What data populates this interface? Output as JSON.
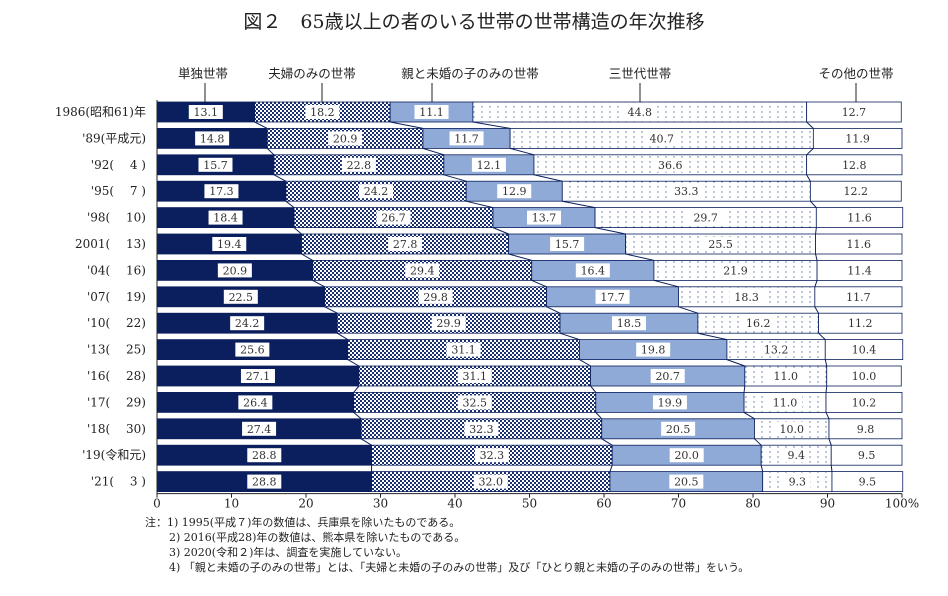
{
  "chart_data": {
    "type": "bar",
    "orientation": "horizontal",
    "stacked": true,
    "title": "図２　65歳以上の者のいる世帯の世帯構造の年次推移",
    "categories": [
      "1986(昭和61)年",
      "'89(平成元)",
      "'92(　 4 )",
      "'95(　 7 )",
      "'98(　 10)",
      "2001(　 13)",
      "'04(　 16)",
      "'07(　 19)",
      "'10(　 22)",
      "'13(　 25)",
      "'16(　 28)",
      "'17(　 29)",
      "'18(　 30)",
      "'19(令和元)",
      "'21(　 3 )"
    ],
    "series": [
      {
        "name": "単独世帯",
        "color": "#0b1f5e",
        "values": [
          13.1,
          14.8,
          15.7,
          17.3,
          18.4,
          19.4,
          20.9,
          22.5,
          24.2,
          25.6,
          27.1,
          26.4,
          27.4,
          28.8,
          28.8
        ]
      },
      {
        "name": "夫婦のみの世帯",
        "color": "#1a2f6e",
        "pattern": "checker",
        "values": [
          18.2,
          20.9,
          22.8,
          24.2,
          26.7,
          27.8,
          29.4,
          29.8,
          29.9,
          31.1,
          31.1,
          32.5,
          32.3,
          32.3,
          32.0
        ]
      },
      {
        "name": "親と未婚の子のみの世帯",
        "color": "#8faad6",
        "values": [
          11.1,
          11.7,
          12.1,
          12.9,
          13.7,
          15.7,
          16.4,
          17.7,
          18.5,
          19.8,
          20.7,
          19.9,
          20.5,
          20.0,
          20.5
        ]
      },
      {
        "name": "三世代世帯",
        "color": "#ffffff",
        "pattern": "dots",
        "values": [
          44.8,
          40.7,
          36.6,
          33.3,
          29.7,
          25.5,
          21.9,
          18.3,
          16.2,
          13.2,
          11.0,
          11.0,
          10.0,
          9.4,
          9.3
        ]
      },
      {
        "name": "その他の世帯",
        "color": "#ffffff",
        "values": [
          12.7,
          11.9,
          12.8,
          12.2,
          11.6,
          11.6,
          11.4,
          11.7,
          11.2,
          10.4,
          10.0,
          10.2,
          9.8,
          9.5,
          9.5
        ]
      }
    ],
    "xlim": [
      0,
      100
    ],
    "xticks": [
      "0",
      "10",
      "20",
      "30",
      "40",
      "50",
      "60",
      "70",
      "80",
      "90",
      "100%"
    ],
    "legend_placement": "top",
    "notes": [
      "注：1)  1995(平成７)年の数値は、兵庫県を除いたものである。",
      "2)  2016(平成28)年の数値は、熊本県を除いたものである。",
      "3)  2020(令和２)年は、調査を実施していない。",
      "4)  「親と未婚の子のみの世帯」とは、「夫婦と未婚の子のみの世帯」及び「ひとり親と未婚の子のみの世帯」をいう。"
    ]
  }
}
